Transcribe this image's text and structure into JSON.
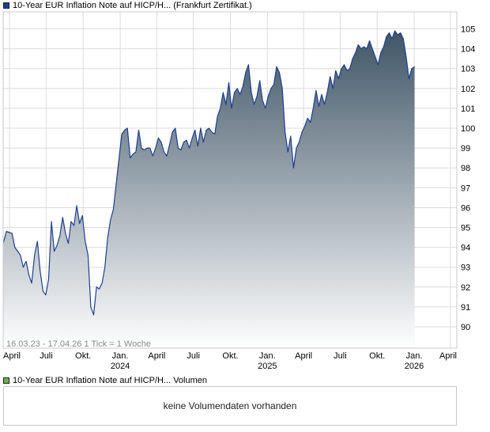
{
  "legend": {
    "price_label": "10-Year EUR Inflation Note auf HICP/H... (Frankfurt Zertifikat.)",
    "price_color": "#1f3f8f",
    "volume_label": "10-Year EUR Inflation Note auf HICP/H... Volumen",
    "volume_color": "#6ab04c"
  },
  "chart_info": "16.03.23 - 17.04.26   1 Tick = 1 Woche",
  "volume_message": "keine Volumendaten vorhanden",
  "chart_data": {
    "type": "area",
    "x_start": "2023-03-16",
    "x_end": "2026-04-17",
    "ylim": [
      89,
      106
    ],
    "grid": true,
    "y_ticks": [
      90,
      91,
      92,
      93,
      94,
      95,
      96,
      97,
      98,
      99,
      100,
      101,
      102,
      103,
      104,
      105
    ],
    "x_ticks": [
      {
        "label": "April",
        "year": "",
        "date": "2023-04-01"
      },
      {
        "label": "Juli",
        "year": "",
        "date": "2023-07-01"
      },
      {
        "label": "Okt.",
        "year": "",
        "date": "2023-10-01"
      },
      {
        "label": "Jan.",
        "year": "2024",
        "date": "2024-01-01"
      },
      {
        "label": "April",
        "year": "",
        "date": "2024-04-01"
      },
      {
        "label": "Juli",
        "year": "",
        "date": "2024-07-01"
      },
      {
        "label": "Okt.",
        "year": "",
        "date": "2024-10-01"
      },
      {
        "label": "Jan.",
        "year": "2025",
        "date": "2025-01-01"
      },
      {
        "label": "April",
        "year": "",
        "date": "2025-04-01"
      },
      {
        "label": "Juli",
        "year": "",
        "date": "2025-07-01"
      },
      {
        "label": "Okt.",
        "year": "",
        "date": "2025-10-01"
      },
      {
        "label": "Jan.",
        "year": "2026",
        "date": "2026-01-01"
      },
      {
        "label": "April",
        "year": "",
        "date": "2026-04-01"
      }
    ],
    "series": [
      {
        "name": "10-Year EUR Inflation Note auf HICP/H... (Frankfurt Zertifikat.)",
        "points": [
          [
            "2023-03-16",
            94.2
          ],
          [
            "2023-03-24",
            94.8
          ],
          [
            "2023-04-07",
            94.7
          ],
          [
            "2023-04-14",
            94.0
          ],
          [
            "2023-04-28",
            93.6
          ],
          [
            "2023-05-05",
            93.0
          ],
          [
            "2023-05-12",
            93.3
          ],
          [
            "2023-05-19",
            92.6
          ],
          [
            "2023-05-26",
            92.2
          ],
          [
            "2023-06-02",
            93.6
          ],
          [
            "2023-06-09",
            94.3
          ],
          [
            "2023-06-16",
            92.8
          ],
          [
            "2023-06-23",
            91.8
          ],
          [
            "2023-06-30",
            91.6
          ],
          [
            "2023-07-07",
            92.4
          ],
          [
            "2023-07-14",
            95.3
          ],
          [
            "2023-07-21",
            93.8
          ],
          [
            "2023-07-28",
            94.1
          ],
          [
            "2023-08-04",
            94.6
          ],
          [
            "2023-08-11",
            95.5
          ],
          [
            "2023-08-18",
            94.7
          ],
          [
            "2023-08-25",
            94.2
          ],
          [
            "2023-09-01",
            95.3
          ],
          [
            "2023-09-08",
            95.1
          ],
          [
            "2023-09-15",
            96.1
          ],
          [
            "2023-09-22",
            95.2
          ],
          [
            "2023-09-29",
            95.6
          ],
          [
            "2023-10-06",
            94.3
          ],
          [
            "2023-10-13",
            93.6
          ],
          [
            "2023-10-20",
            91.0
          ],
          [
            "2023-10-27",
            90.6
          ],
          [
            "2023-11-03",
            92.0
          ],
          [
            "2023-11-10",
            91.9
          ],
          [
            "2023-11-17",
            92.2
          ],
          [
            "2023-11-24",
            93.0
          ],
          [
            "2023-12-01",
            94.5
          ],
          [
            "2023-12-08",
            95.4
          ],
          [
            "2023-12-15",
            95.9
          ],
          [
            "2023-12-22",
            97.2
          ],
          [
            "2024-01-05",
            99.7
          ],
          [
            "2024-01-12",
            99.9
          ],
          [
            "2024-01-19",
            100.0
          ],
          [
            "2024-01-26",
            98.5
          ],
          [
            "2024-02-02",
            98.7
          ],
          [
            "2024-02-09",
            98.8
          ],
          [
            "2024-02-16",
            99.9
          ],
          [
            "2024-02-23",
            99.0
          ],
          [
            "2024-03-01",
            98.9
          ],
          [
            "2024-03-08",
            99.0
          ],
          [
            "2024-03-15",
            99.0
          ],
          [
            "2024-03-22",
            98.6
          ],
          [
            "2024-03-29",
            99.0
          ],
          [
            "2024-04-05",
            99.5
          ],
          [
            "2024-04-12",
            99.3
          ],
          [
            "2024-04-19",
            98.8
          ],
          [
            "2024-04-26",
            98.6
          ],
          [
            "2024-05-03",
            99.2
          ],
          [
            "2024-05-10",
            99.8
          ],
          [
            "2024-05-17",
            100.0
          ],
          [
            "2024-05-24",
            99.0
          ],
          [
            "2024-05-31",
            98.9
          ],
          [
            "2024-06-07",
            99.3
          ],
          [
            "2024-06-14",
            99.4
          ],
          [
            "2024-06-21",
            99.0
          ],
          [
            "2024-06-28",
            99.5
          ],
          [
            "2024-07-05",
            99.9
          ],
          [
            "2024-07-12",
            99.1
          ],
          [
            "2024-07-19",
            100.0
          ],
          [
            "2024-07-26",
            99.3
          ],
          [
            "2024-08-02",
            99.9
          ],
          [
            "2024-08-09",
            100.0
          ],
          [
            "2024-08-16",
            99.8
          ],
          [
            "2024-08-23",
            99.7
          ],
          [
            "2024-08-30",
            100.6
          ],
          [
            "2024-09-06",
            101.0
          ],
          [
            "2024-09-13",
            101.8
          ],
          [
            "2024-09-20",
            101.2
          ],
          [
            "2024-09-27",
            102.3
          ],
          [
            "2024-10-04",
            101.0
          ],
          [
            "2024-10-11",
            101.8
          ],
          [
            "2024-10-18",
            102.0
          ],
          [
            "2024-10-25",
            101.7
          ],
          [
            "2024-11-01",
            102.1
          ],
          [
            "2024-11-08",
            102.8
          ],
          [
            "2024-11-15",
            103.2
          ],
          [
            "2024-11-22",
            101.8
          ],
          [
            "2024-11-29",
            101.2
          ],
          [
            "2024-12-06",
            101.6
          ],
          [
            "2024-12-13",
            102.4
          ],
          [
            "2024-12-20",
            101.4
          ],
          [
            "2024-12-27",
            101.0
          ],
          [
            "2025-01-03",
            101.6
          ],
          [
            "2025-01-10",
            102.0
          ],
          [
            "2025-01-17",
            102.2
          ],
          [
            "2025-01-24",
            103.1
          ],
          [
            "2025-01-31",
            102.8
          ],
          [
            "2025-02-07",
            102.0
          ],
          [
            "2025-02-14",
            99.8
          ],
          [
            "2025-02-21",
            98.8
          ],
          [
            "2025-02-28",
            99.6
          ],
          [
            "2025-03-07",
            98.0
          ],
          [
            "2025-03-14",
            99.0
          ],
          [
            "2025-03-21",
            99.3
          ],
          [
            "2025-03-28",
            99.8
          ],
          [
            "2025-04-04",
            100.1
          ],
          [
            "2025-04-11",
            100.5
          ],
          [
            "2025-04-18",
            100.3
          ],
          [
            "2025-04-25",
            101.0
          ],
          [
            "2025-05-02",
            101.9
          ],
          [
            "2025-05-09",
            101.1
          ],
          [
            "2025-05-16",
            101.7
          ],
          [
            "2025-05-23",
            101.2
          ],
          [
            "2025-05-30",
            101.8
          ],
          [
            "2025-06-06",
            102.6
          ],
          [
            "2025-06-13",
            102.0
          ],
          [
            "2025-06-20",
            102.9
          ],
          [
            "2025-06-27",
            102.5
          ],
          [
            "2025-07-04",
            103.0
          ],
          [
            "2025-07-11",
            103.2
          ],
          [
            "2025-07-18",
            102.9
          ],
          [
            "2025-07-25",
            103.0
          ],
          [
            "2025-08-01",
            103.5
          ],
          [
            "2025-08-08",
            103.8
          ],
          [
            "2025-08-15",
            104.2
          ],
          [
            "2025-08-22",
            104.0
          ],
          [
            "2025-08-29",
            104.1
          ],
          [
            "2025-09-05",
            104.0
          ],
          [
            "2025-09-12",
            104.4
          ],
          [
            "2025-09-19",
            104.0
          ],
          [
            "2025-09-26",
            103.6
          ],
          [
            "2025-10-03",
            103.2
          ],
          [
            "2025-10-10",
            103.8
          ],
          [
            "2025-10-17",
            104.1
          ],
          [
            "2025-10-24",
            104.6
          ],
          [
            "2025-10-31",
            104.8
          ],
          [
            "2025-11-07",
            104.5
          ],
          [
            "2025-11-14",
            104.9
          ],
          [
            "2025-11-21",
            104.7
          ],
          [
            "2025-11-28",
            104.8
          ],
          [
            "2025-12-05",
            104.5
          ],
          [
            "2025-12-12",
            103.6
          ],
          [
            "2025-12-19",
            102.5
          ],
          [
            "2025-12-26",
            103.0
          ],
          [
            "2026-01-02",
            103.1
          ]
        ]
      }
    ]
  }
}
